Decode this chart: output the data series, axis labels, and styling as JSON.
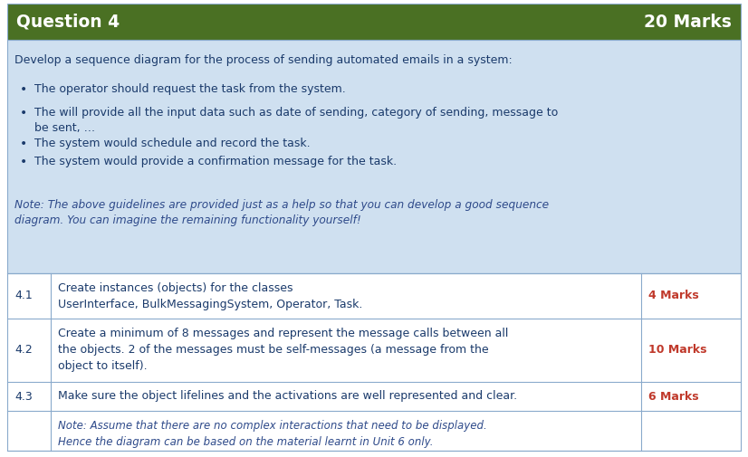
{
  "header_bg": "#4a7023",
  "header_text_left": "Question 4",
  "header_text_right": "20 Marks",
  "header_text_color": "#ffffff",
  "body_bg": "#cfe0f0",
  "body_text_color": "#1a3a6b",
  "intro_text": "Develop a sequence diagram for the process of sending automated emails in a system:",
  "bullet1": "The operator should request the task from the system.",
  "bullet2": "The will provide all the input data such as date of sending, category of sending, message to",
  "bullet2b": "be sent, …",
  "bullet3": "The system would schedule and record the task.",
  "bullet4": "The system would provide a confirmation message for the task.",
  "note_line1": "Note: The above guidelines are provided just as a help so that you can develop a good sequence",
  "note_line2": "diagram. You can imagine the remaining functionality yourself!",
  "note_color": "#2e4a8a",
  "row1_num": "4.1",
  "row1_desc1": "Create instances (objects) for the classes",
  "row1_desc2": "UserInterface, BulkMessagingSystem, Operator, Task.",
  "row1_marks": "4 Marks",
  "row2_num": "4.2",
  "row2_desc1": "Create a minimum of 8 messages and represent the message calls between all",
  "row2_desc2": "the objects. 2 of the messages must be self-messages (a message from the",
  "row2_desc3": "object to itself).",
  "row2_marks": "10 Marks",
  "row3_num": "4.3",
  "row3_desc1": "Make sure the object lifelines and the activations are well represented and clear.",
  "row3_marks": "6 Marks",
  "row4_note1": "Note: Assume that there are no complex interactions that need to be displayed.",
  "row4_note2": "Hence the diagram can be based on the material learnt in Unit 6 only.",
  "table_bg": "#ffffff",
  "table_text_color": "#1a3a6b",
  "marks_color": "#c0392b",
  "border_color": "#8aaacc",
  "figsize": [
    8.26,
    5.05
  ],
  "dpi": 100
}
